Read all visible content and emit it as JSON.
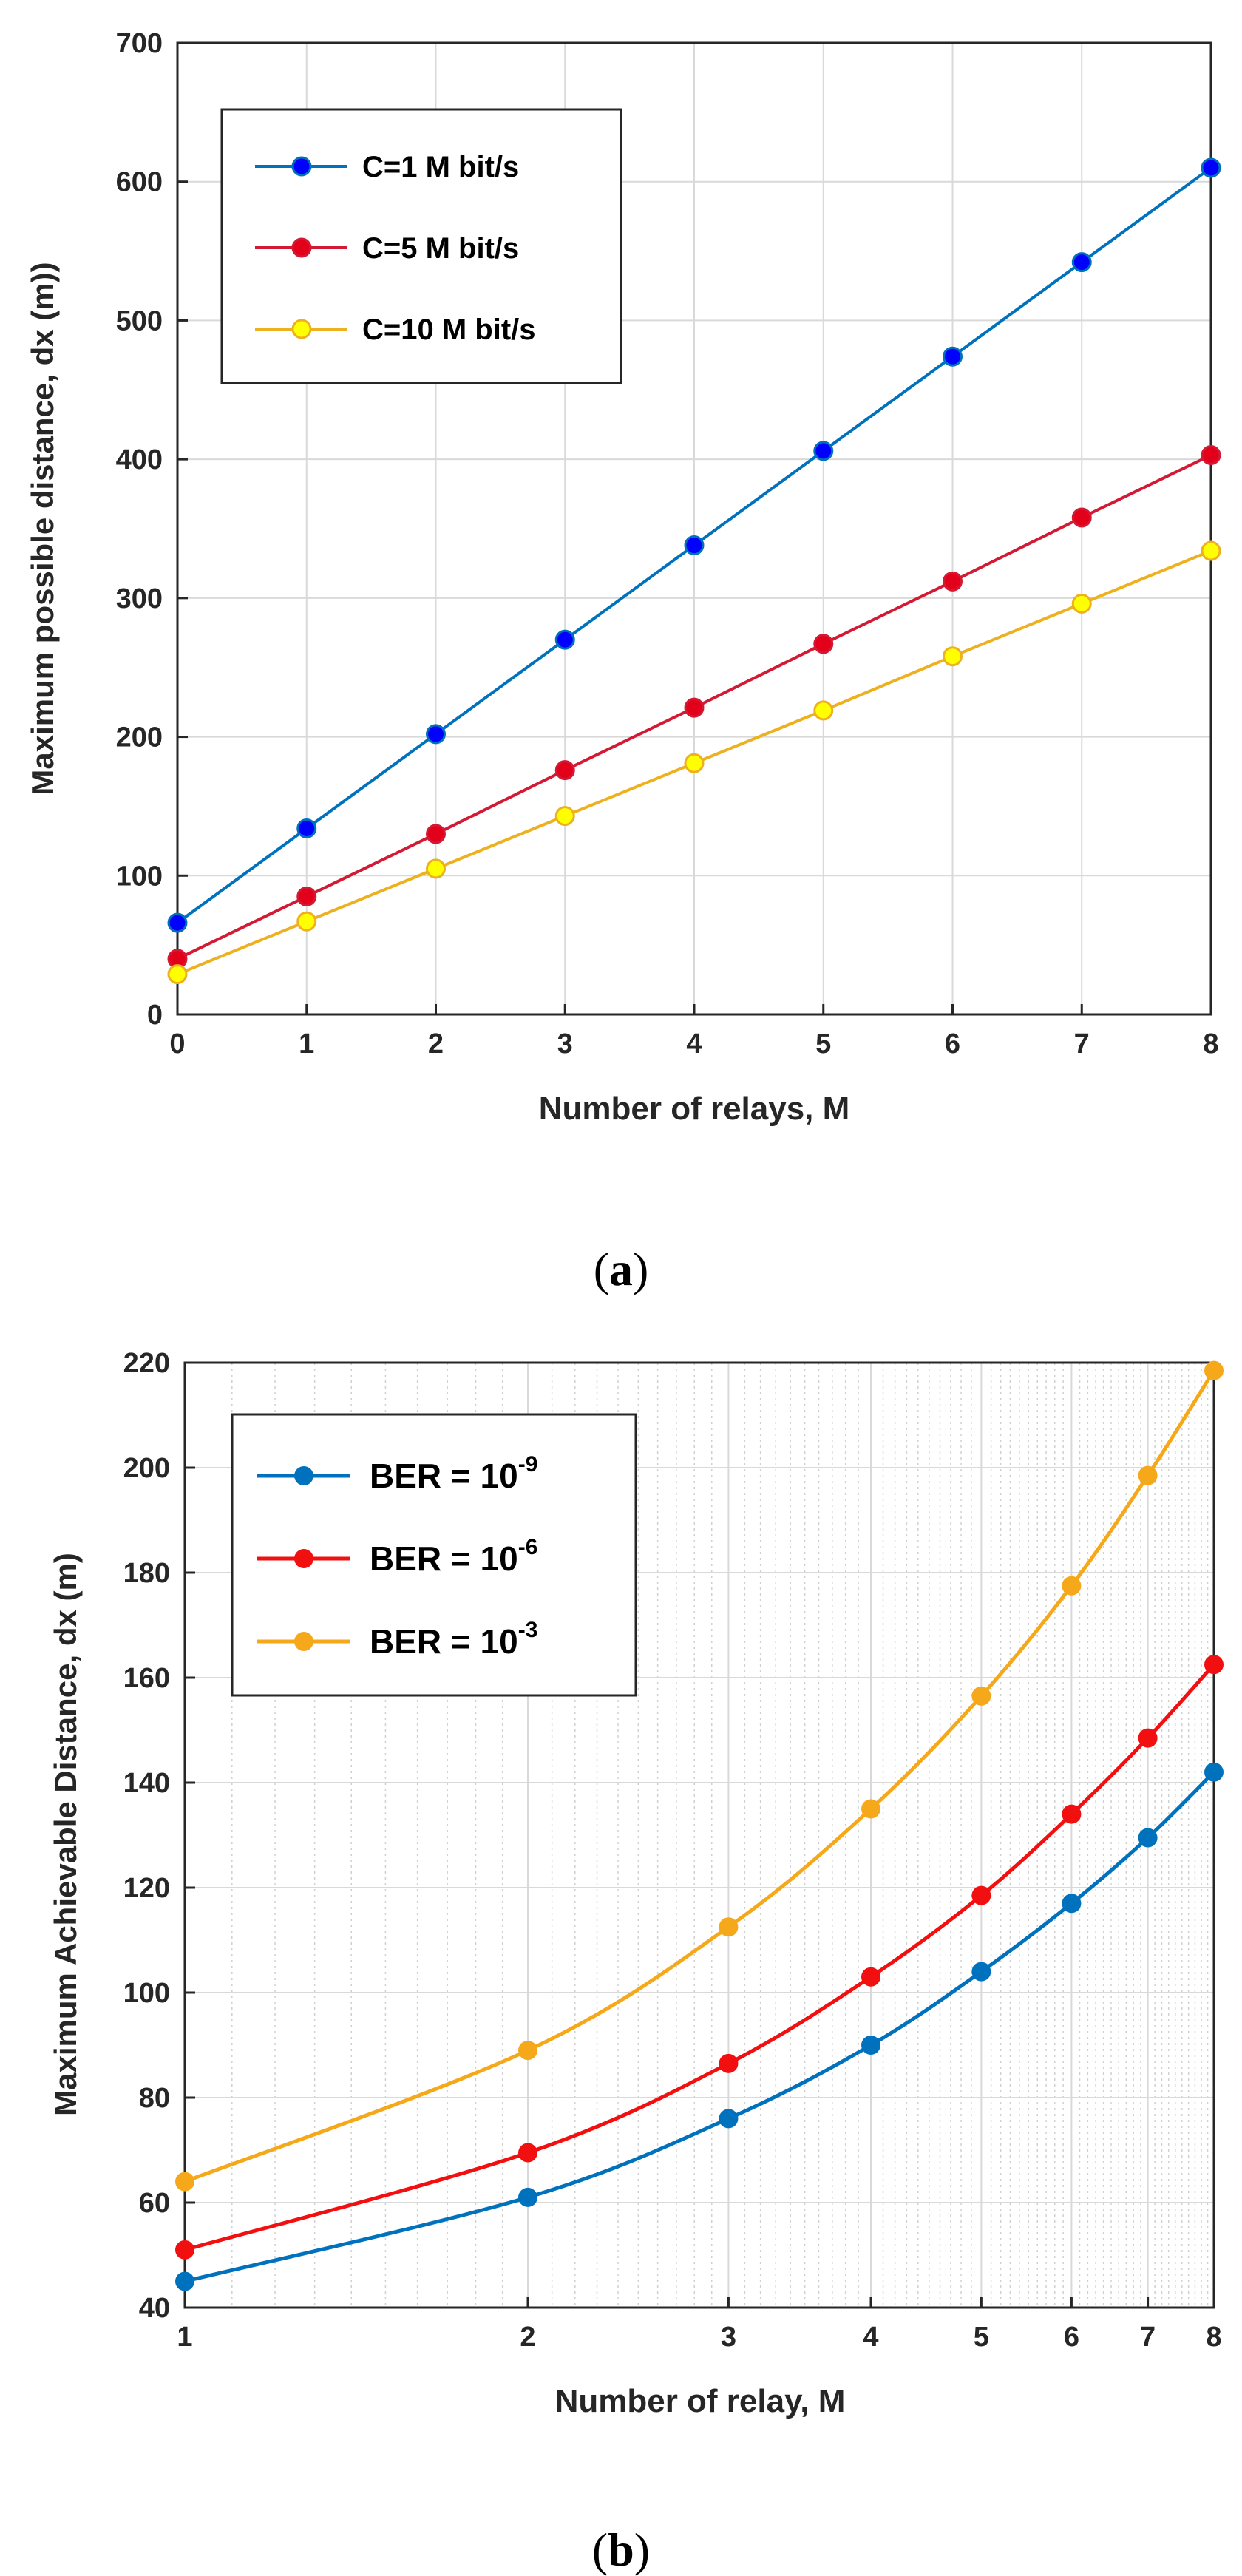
{
  "chart_data": [
    {
      "panel": "a",
      "caption": "(a)",
      "type": "line",
      "xlabel": "Number of relays, M",
      "ylabel": "Maximum possible distance,  dx (m))",
      "x": [
        0,
        1,
        2,
        3,
        4,
        5,
        6,
        7,
        8
      ],
      "xlim": [
        0,
        8
      ],
      "ylim": [
        0,
        700
      ],
      "xticks": [
        0,
        1,
        2,
        3,
        4,
        5,
        6,
        7,
        8
      ],
      "yticks": [
        0,
        100,
        200,
        300,
        400,
        500,
        600,
        700
      ],
      "grid": true,
      "legend_position": "top-left",
      "series": [
        {
          "name": "C=1 M bit/s",
          "line_color": "#0072BD",
          "marker_fill": "#0000FF",
          "values": [
            66,
            134,
            202,
            270,
            338,
            406,
            474,
            542,
            610
          ]
        },
        {
          "name": "C=5 M bit/s",
          "line_color": "#D31A34",
          "marker_fill": "#E3001B",
          "values": [
            40,
            85,
            130,
            176,
            221,
            267,
            312,
            358,
            403
          ]
        },
        {
          "name": "C=10 M bit/s",
          "line_color": "#EDB120",
          "marker_fill": "#FFFF00",
          "values": [
            29,
            67,
            105,
            143,
            181,
            219,
            258,
            296,
            334
          ]
        }
      ]
    },
    {
      "panel": "b",
      "caption": "(b)",
      "type": "line",
      "xscale": "log",
      "xlabel": "Number of relay, M",
      "ylabel": "Maximum Achievable Distance,  dx (m)",
      "x": [
        1,
        2,
        3,
        4,
        5,
        6,
        7,
        8
      ],
      "xlim": [
        1,
        8
      ],
      "ylim": [
        40,
        220
      ],
      "xticks": [
        1,
        2,
        3,
        4,
        5,
        6,
        7,
        8
      ],
      "yticks": [
        40,
        60,
        80,
        100,
        120,
        140,
        160,
        180,
        200,
        220
      ],
      "grid": true,
      "legend_position": "top-left",
      "series": [
        {
          "name": "BER = 10",
          "exponent": "-9",
          "color": "#0072BD",
          "values": [
            45,
            61,
            76,
            90,
            104,
            117,
            129.5,
            142
          ]
        },
        {
          "name": "BER = 10",
          "exponent": "-6",
          "color": "#F20F0F",
          "values": [
            51,
            69.5,
            86.5,
            103,
            118.5,
            134,
            148.5,
            162.5
          ]
        },
        {
          "name": "BER = 10",
          "exponent": "-3",
          "color": "#F6A81B",
          "values": [
            64,
            89,
            112.5,
            135,
            156.5,
            177.5,
            198.5,
            218.5
          ]
        }
      ]
    }
  ]
}
